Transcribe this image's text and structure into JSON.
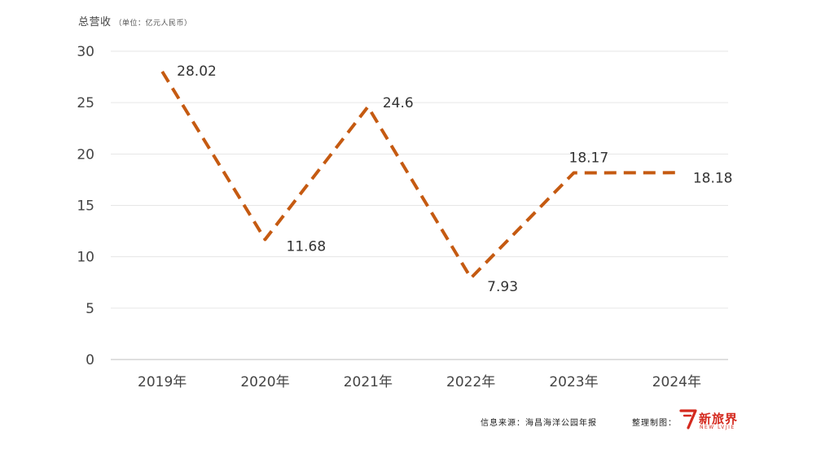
{
  "chart_data": {
    "type": "line",
    "title": "总营收",
    "unit_note": "（单位：亿元人民币）",
    "categories": [
      "2019年",
      "2020年",
      "2021年",
      "2022年",
      "2023年",
      "2024年"
    ],
    "series": [
      {
        "values": [
          28.02,
          11.68,
          24.6,
          7.93,
          18.17,
          18.18
        ],
        "labels": [
          "28.02",
          "11.68",
          "24.6",
          "7.93",
          "18.17",
          "18.18"
        ],
        "color": "#c55a11",
        "line_style": "dashed"
      }
    ],
    "ylim": [
      0,
      30
    ],
    "yticks": [
      0,
      5,
      10,
      15,
      20,
      25,
      30
    ],
    "grid": true,
    "legend": "none"
  },
  "footer": {
    "source": "信息来源：海昌海洋公园年报",
    "credit": "整理制图："
  },
  "logo": {
    "name": "新旅界",
    "subtitle": "NEW LVJIE",
    "color": "#d42a1f"
  }
}
